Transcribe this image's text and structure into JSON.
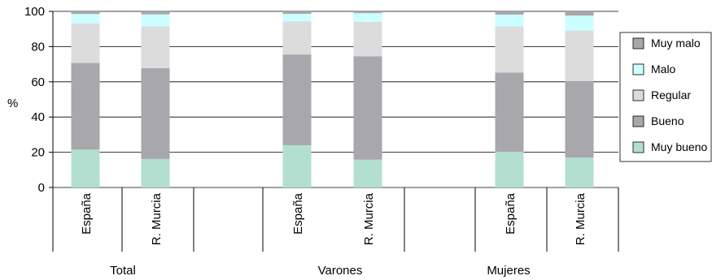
{
  "chart_data": {
    "type": "bar",
    "stacked": true,
    "ylabel": "%",
    "ylim": [
      0,
      100
    ],
    "yticks": [
      0,
      20,
      40,
      60,
      80,
      100
    ],
    "grid": true,
    "legend_position": "right",
    "groups": [
      "Total",
      "Varones",
      "Mujeres"
    ],
    "categories": [
      {
        "group": "Total",
        "label": "España"
      },
      {
        "group": "Total",
        "label": "R. Murcia"
      },
      {
        "group": "Varones",
        "label": "España"
      },
      {
        "group": "Varones",
        "label": "R. Murcia"
      },
      {
        "group": "Mujeres",
        "label": "España"
      },
      {
        "group": "Mujeres",
        "label": "R. Murcia"
      }
    ],
    "series": [
      {
        "name": "Muy bueno",
        "color": "#b3dfd0",
        "values": [
          21.5,
          16.2,
          24.0,
          15.8,
          20.3,
          17.0
        ]
      },
      {
        "name": "Bueno",
        "color": "#a7a7ac",
        "values": [
          49.2,
          51.5,
          51.5,
          58.7,
          44.9,
          43.5
        ]
      },
      {
        "name": "Regular",
        "color": "#dcdcdc",
        "values": [
          22.5,
          23.8,
          18.8,
          19.5,
          26.3,
          28.6
        ]
      },
      {
        "name": "Malo",
        "color": "#ccffff",
        "values": [
          5.3,
          6.8,
          4.3,
          5.0,
          6.7,
          8.5
        ]
      },
      {
        "name": "Muy malo",
        "color": "#a7a7ac",
        "values": [
          1.5,
          1.7,
          1.4,
          1.0,
          1.8,
          2.4
        ]
      }
    ]
  }
}
